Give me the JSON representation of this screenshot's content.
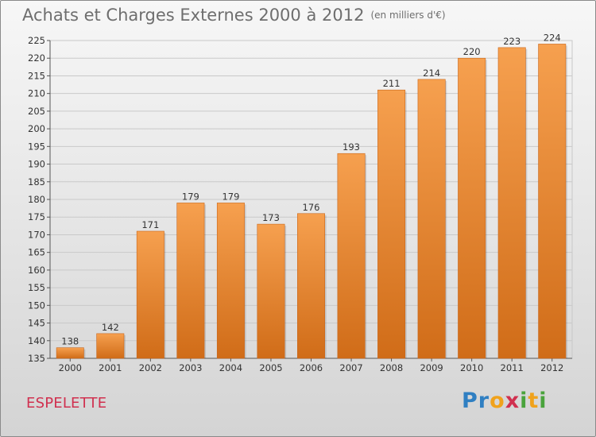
{
  "header": {
    "title": "Achats et Charges Externes 2000 à 2012",
    "unit": "(en milliers d'€)"
  },
  "commune": "ESPELETTE",
  "logo": {
    "text": "Proxiti",
    "letters": [
      {
        "ch": "P",
        "color": "#2f7fc2"
      },
      {
        "ch": "r",
        "color": "#2f7fc2"
      },
      {
        "ch": "o",
        "color": "#f0a21c"
      },
      {
        "ch": "x",
        "color": "#d0304f"
      },
      {
        "ch": "i",
        "color": "#4aa33c"
      },
      {
        "ch": "t",
        "color": "#f0a21c"
      },
      {
        "ch": "i",
        "color": "#4aa33c"
      }
    ]
  },
  "chart_data": {
    "type": "bar",
    "title": "Achats et Charges Externes 2000 à 2012",
    "subtitle": "(en milliers d'€)",
    "categories": [
      "2000",
      "2001",
      "2002",
      "2003",
      "2004",
      "2005",
      "2006",
      "2007",
      "2008",
      "2009",
      "2010",
      "2011",
      "2012"
    ],
    "values": [
      138,
      142,
      171,
      179,
      179,
      173,
      176,
      193,
      211,
      214,
      220,
      223,
      224
    ],
    "ylim": [
      135,
      225
    ],
    "yticks": [
      135,
      140,
      145,
      150,
      155,
      160,
      165,
      170,
      175,
      180,
      185,
      190,
      195,
      200,
      205,
      210,
      215,
      220,
      225
    ],
    "grid": true,
    "bar_color_top": "#f6a04f",
    "bar_color_bottom": "#d06c18"
  }
}
